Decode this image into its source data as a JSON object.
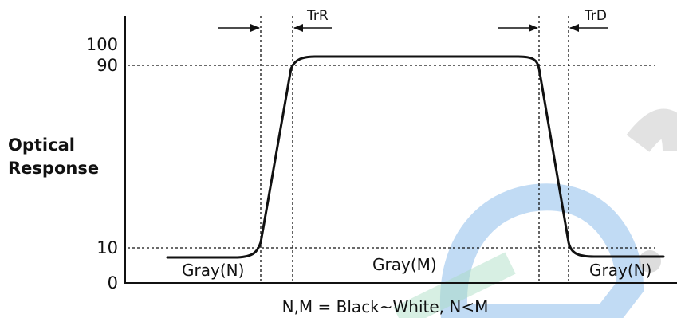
{
  "colors": {
    "ink": "#111111",
    "watermark_blue": "#4a90e2",
    "watermark_green": "#7ec8a0",
    "watermark_gray": "#999999"
  },
  "ticks": {
    "t100": "100",
    "t90": "90",
    "t10": "10",
    "t0": "0"
  },
  "ylabel": {
    "line1": "Optical",
    "line2": "Response"
  },
  "segments": {
    "gray_n_left": "Gray(N)",
    "gray_m": "Gray(M)",
    "gray_n_right": "Gray(N)"
  },
  "timing": {
    "rise": "TrR",
    "decay": "TrD"
  },
  "footnote": "N,M = Black~White,  N<M"
}
